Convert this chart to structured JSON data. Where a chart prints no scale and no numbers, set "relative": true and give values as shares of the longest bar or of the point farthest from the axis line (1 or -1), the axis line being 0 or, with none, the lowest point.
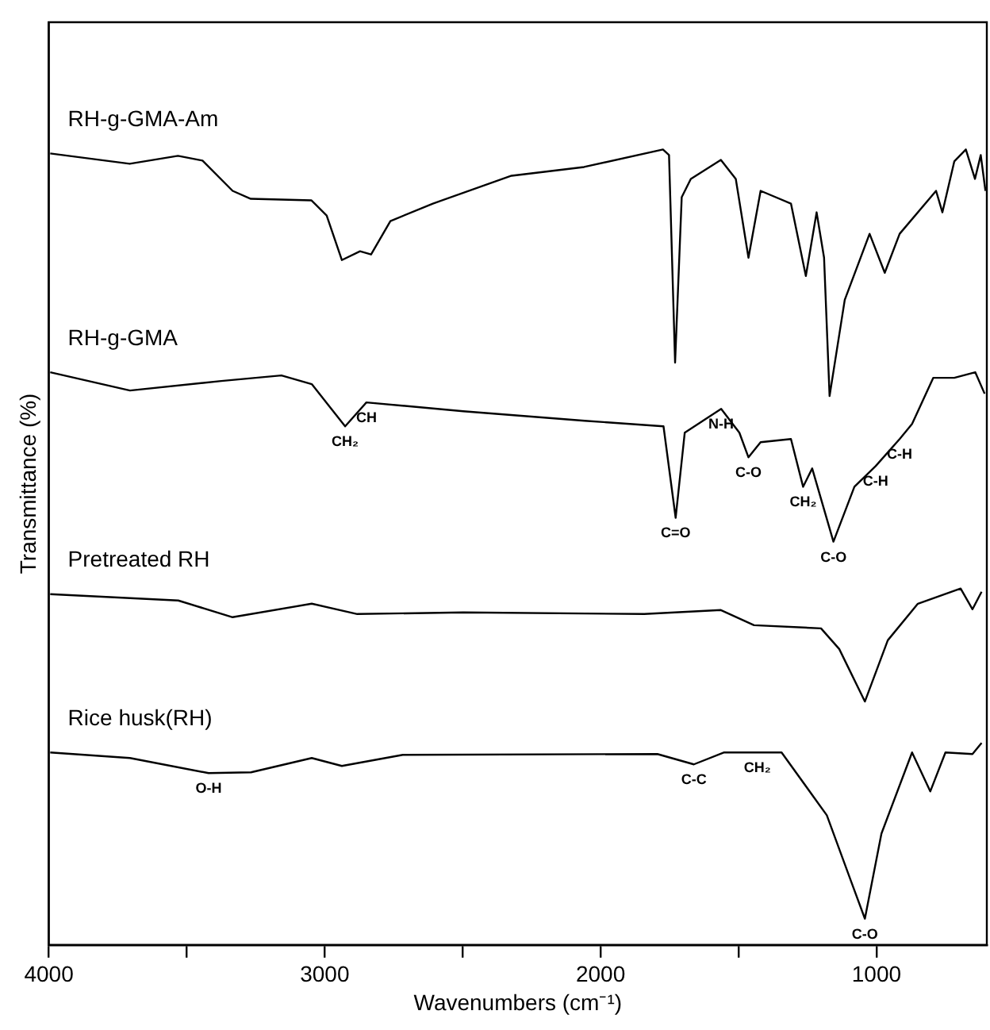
{
  "chart_data": {
    "type": "line",
    "relative": true,
    "xlabel": "Wavenumbers (cm⁻¹)",
    "ylabel": "Transmittance (%)",
    "xlim": [
      4000,
      600
    ],
    "xticks": [
      4000,
      {
        "value": 3500,
        "label": null
      },
      3000,
      {
        "value": 2500,
        "label": null
      },
      2000,
      {
        "value": 1500,
        "label": null
      },
      1000
    ],
    "grid": false,
    "legend": false,
    "marker": "none",
    "line_style": "solid",
    "series": [
      {
        "name": "RH-g-GMA-Am",
        "color": "#000000",
        "x": [
          3995,
          3707,
          3532,
          3443,
          3334,
          3268,
          3048,
          2993,
          2938,
          2872,
          2832,
          2762,
          2608,
          2323,
          2060,
          1774,
          1752,
          1730,
          1706,
          1673,
          1564,
          1510,
          1464,
          1420,
          1310,
          1256,
          1217,
          1190,
          1170,
          1115,
          1025,
          970,
          916,
          784,
          761,
          718,
          676,
          643,
          622,
          605
        ],
        "values": [
          0.995,
          0.982,
          0.992,
          0.986,
          0.948,
          0.938,
          0.936,
          0.917,
          0.861,
          0.872,
          0.868,
          0.91,
          0.932,
          0.967,
          0.978,
          1.0,
          0.993,
          0.732,
          0.94,
          0.963,
          0.987,
          0.963,
          0.864,
          0.948,
          0.932,
          0.841,
          0.921,
          0.864,
          0.69,
          0.811,
          0.894,
          0.845,
          0.894,
          0.948,
          0.921,
          0.985,
          1.0,
          0.963,
          0.993,
          0.948
        ]
      },
      {
        "name": "RH-g-GMA",
        "color": "#000000",
        "x": [
          3995,
          3706,
          3375,
          3157,
          3047,
          2926,
          2849,
          2498,
          2058,
          1772,
          1728,
          1695,
          1563,
          1497,
          1464,
          1420,
          1310,
          1266,
          1233,
          1156,
          1080,
          1003,
          916,
          871,
          794,
          718,
          642,
          608
        ],
        "values": [
          0.72,
          0.697,
          0.709,
          0.716,
          0.705,
          0.652,
          0.682,
          0.671,
          0.659,
          0.652,
          0.537,
          0.644,
          0.674,
          0.644,
          0.613,
          0.632,
          0.636,
          0.576,
          0.599,
          0.507,
          0.576,
          0.602,
          0.636,
          0.655,
          0.713,
          0.713,
          0.72,
          0.693
        ]
      },
      {
        "name": "Pretreated RH",
        "color": "#000000",
        "x": [
          3995,
          3531,
          3334,
          3047,
          2882,
          2498,
          1842,
          1564,
          1444,
          1201,
          1135,
          1042,
          959,
          850,
          695,
          652,
          619
        ],
        "values": [
          0.441,
          0.433,
          0.412,
          0.429,
          0.416,
          0.418,
          0.416,
          0.421,
          0.402,
          0.398,
          0.372,
          0.306,
          0.383,
          0.429,
          0.448,
          0.422,
          0.444
        ]
      },
      {
        "name": "Rice husk(RH)",
        "color": "#000000",
        "x": [
          3995,
          3706,
          3421,
          3267,
          3047,
          2938,
          2717,
          1794,
          1662,
          1552,
          1432,
          1344,
          1180,
          1091,
          1042,
          982,
          871,
          805,
          750,
          652,
          619
        ],
        "values": [
          0.242,
          0.235,
          0.216,
          0.217,
          0.235,
          0.225,
          0.239,
          0.24,
          0.227,
          0.242,
          0.242,
          0.242,
          0.163,
          0.079,
          0.033,
          0.14,
          0.242,
          0.193,
          0.242,
          0.24,
          0.254
        ]
      }
    ],
    "annotations": [
      {
        "text": "CH₂",
        "x": 2926,
        "y": 0.652
      },
      {
        "text": "CH",
        "x": 2849,
        "y": 0.682
      },
      {
        "text": "N-H",
        "x": 1563,
        "y": 0.674
      },
      {
        "text": "C-O",
        "x": 1464,
        "y": 0.613
      },
      {
        "text": "C=O",
        "x": 1728,
        "y": 0.537
      },
      {
        "text": "CH₂",
        "x": 1266,
        "y": 0.576
      },
      {
        "text": "C-H",
        "x": 916,
        "y": 0.636
      },
      {
        "text": "C-H",
        "x": 1003,
        "y": 0.602
      },
      {
        "text": "C-O",
        "x": 1156,
        "y": 0.507
      },
      {
        "text": "O-H",
        "x": 3421,
        "y": 0.216
      },
      {
        "text": "C-C",
        "x": 1662,
        "y": 0.227
      },
      {
        "text": "CH₂",
        "x": 1432,
        "y": 0.242
      },
      {
        "text": "C-O",
        "x": 1042,
        "y": 0.033
      }
    ]
  }
}
